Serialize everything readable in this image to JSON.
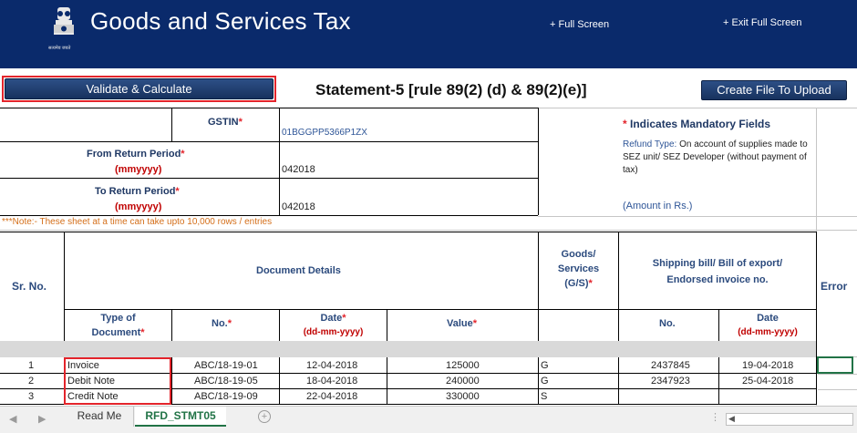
{
  "header": {
    "title": "Goods and Services Tax",
    "full_screen": "+ Full Screen",
    "exit_full_screen": "+ Exit Full Screen",
    "emblem_text": "सत्यमेव जयते"
  },
  "toolbar": {
    "validate_label": "Validate & Calculate",
    "statement_title": "Statement-5 [rule 89(2) (d) & 89(2)(e)]",
    "create_label": "Create File To Upload"
  },
  "form": {
    "gstin_label": "GSTIN",
    "gstin_value": "01BGGPP5366P1ZX",
    "from_label": "From Return Period",
    "to_label": "To Return Period",
    "period_format": "(mmyyyy)",
    "from_value": "042018",
    "to_value": "042018",
    "star": "*",
    "mandatory_note": "Indicates Mandatory Fields",
    "refund_type_label": "Refund Type:",
    "refund_type_line1": "On account of supplies made to",
    "refund_type_line2": "SEZ unit/ SEZ Developer (without payment of",
    "refund_type_line3": "tax)",
    "amount_note": "(Amount in Rs.)",
    "rows_note": "***Note:- These sheet at a time can take upto 10,000 rows / entries"
  },
  "table": {
    "sr_no": "Sr.  No.",
    "document_details": "Document Details",
    "goods_services_l1": "Goods/",
    "goods_services_l2": "Services",
    "goods_services_l3": "(G/S)",
    "shipping_l1": "Shipping bill/ Bill of export/",
    "shipping_l2": "Endorsed invoice no.",
    "error": "Error",
    "type_l1": "Type of",
    "type_l2": "Document",
    "no": "No.",
    "date": "Date",
    "date_format": "(dd-mm-yyyy)",
    "value": "Value",
    "ship_no": "No.",
    "ship_date": "Date",
    "rows": [
      {
        "sr": "1",
        "type": "Invoice",
        "no": "ABC/18-19-01",
        "date": "12-04-2018",
        "value": "125000",
        "gs": "G",
        "ship_no": "2437845",
        "ship_date": "19-04-2018"
      },
      {
        "sr": "2",
        "type": "Debit Note",
        "no": "ABC/18-19-05",
        "date": "18-04-2018",
        "value": "240000",
        "gs": "G",
        "ship_no": "2347923",
        "ship_date": "25-04-2018"
      },
      {
        "sr": "3",
        "type": "Credit Note",
        "no": "ABC/18-19-09",
        "date": "22-04-2018",
        "value": "330000",
        "gs": "S",
        "ship_no": "",
        "ship_date": ""
      }
    ]
  },
  "sheet_tabs": {
    "tabs": [
      "Read Me",
      "RFD_STMT05"
    ],
    "add": "+",
    "dots": "⋮"
  }
}
